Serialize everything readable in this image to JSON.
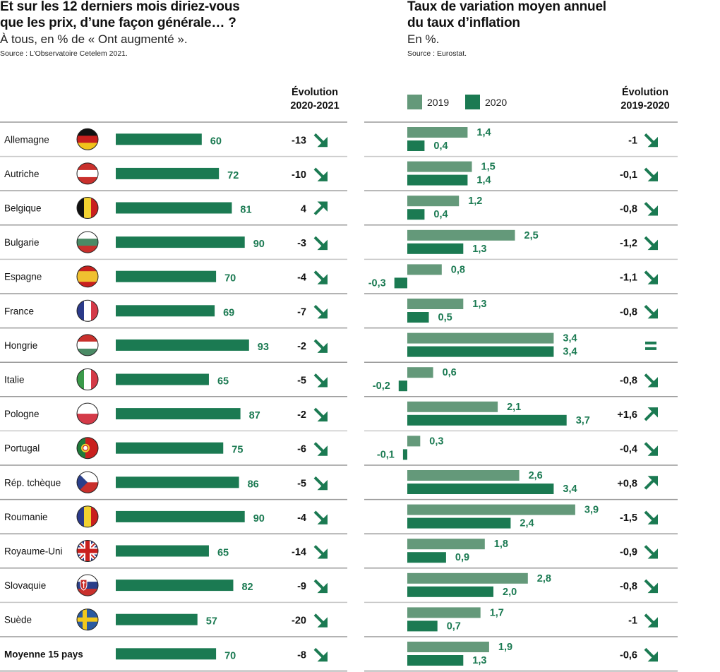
{
  "left_panel": {
    "title_line1": "Et sur les 12 derniers mois diriez-vous",
    "title_line2": "que les prix, d’une façon générale… ?",
    "subtitle": "À tous, en % de « Ont augmenté ».",
    "source": "Source : L’Observatoire Cetelem 2021.",
    "evolution_header_line1": "Évolution",
    "evolution_header_line2": "2020-2021"
  },
  "right_panel": {
    "title_line1": "Taux de variation moyen annuel",
    "title_line2": "du taux d’inflation",
    "subtitle": "En %.",
    "source": "Source : Eurostat.",
    "legend": [
      {
        "label": "2019",
        "color": "#64997a"
      },
      {
        "label": "2020",
        "color": "#1b7a52"
      }
    ],
    "evolution_header_line1": "Évolution",
    "evolution_header_line2": "2019-2020"
  },
  "colors": {
    "bar_main": "#1b7a52",
    "bar_2019": "#64997a",
    "bar_2020": "#1b7a52",
    "label_green": "#1b7a52",
    "arrow_green": "#1b7a52",
    "divider": "#9a9a9a",
    "divider_light": "#c8c8c8"
  },
  "chart_data": [
    {
      "type": "bar",
      "orientation": "horizontal",
      "title": "Et sur les 12 derniers mois diriez-vous que les prix, d’une façon générale… ?",
      "subtitle": "À tous, en % de « Ont augmenté ».",
      "categories": [
        "Allemagne",
        "Autriche",
        "Belgique",
        "Bulgarie",
        "Espagne",
        "France",
        "Hongrie",
        "Italie",
        "Pologne",
        "Portugal",
        "Rép. tchèque",
        "Roumanie",
        "Royaume-Uni",
        "Slovaquie",
        "Suède",
        "Moyenne 15 pays"
      ],
      "flags": [
        "de",
        "at",
        "be",
        "bg",
        "es",
        "fr",
        "hu",
        "it",
        "pl",
        "pt",
        "cz",
        "ro",
        "gb",
        "sk",
        "se",
        ""
      ],
      "values": [
        60,
        72,
        81,
        90,
        70,
        69,
        93,
        65,
        87,
        75,
        86,
        90,
        65,
        82,
        57,
        70
      ],
      "value_labels": [
        "60",
        "72",
        "81",
        "90",
        "70",
        "69",
        "93",
        "65",
        "87",
        "75",
        "86",
        "90",
        "65",
        "82",
        "57",
        "70"
      ],
      "evolution_header": "Évolution 2020-2021",
      "evolution": [
        "-13",
        "-10",
        "4",
        "-3",
        "-4",
        "-7",
        "-2",
        "-5",
        "-2",
        "-6",
        "-5",
        "-4",
        "-14",
        "-9",
        "-20",
        "-8"
      ],
      "evolution_direction": [
        "down",
        "down",
        "up",
        "down",
        "down",
        "down",
        "down",
        "down",
        "down",
        "down",
        "down",
        "down",
        "down",
        "down",
        "down",
        "down"
      ],
      "xlim": [
        0,
        100
      ],
      "grid": false,
      "unit": "%"
    },
    {
      "type": "bar",
      "orientation": "horizontal",
      "title": "Taux de variation moyen annuel du taux d’inflation",
      "subtitle": "En %.",
      "categories": [
        "Allemagne",
        "Autriche",
        "Belgique",
        "Bulgarie",
        "Espagne",
        "France",
        "Hongrie",
        "Italie",
        "Pologne",
        "Portugal",
        "Rép. tchèque",
        "Roumanie",
        "Royaume-Uni",
        "Slovaquie",
        "Suède",
        "Moyenne 15 pays"
      ],
      "series": [
        {
          "name": "2019",
          "values": [
            1.4,
            1.5,
            1.2,
            2.5,
            0.8,
            1.3,
            3.4,
            0.6,
            2.1,
            0.3,
            2.6,
            3.9,
            1.8,
            2.8,
            1.7,
            1.9
          ],
          "labels": [
            "1,4",
            "1,5",
            "1,2",
            "2,5",
            "0,8",
            "1,3",
            "3,4",
            "0,6",
            "2,1",
            "0,3",
            "2,6",
            "3,9",
            "1,8",
            "2,8",
            "1,7",
            "1,9"
          ]
        },
        {
          "name": "2020",
          "values": [
            0.4,
            1.4,
            0.4,
            1.3,
            -0.3,
            0.5,
            3.4,
            -0.2,
            3.7,
            -0.1,
            3.4,
            2.4,
            0.9,
            2.0,
            0.7,
            1.3
          ],
          "labels": [
            "0,4",
            "1,4",
            "0,4",
            "1,3",
            "-0,3",
            "0,5",
            "3,4",
            "-0,2",
            "3,7",
            "-0,1",
            "3,4",
            "2,4",
            "0,9",
            "2,0",
            "0,7",
            "1,3"
          ]
        }
      ],
      "evolution_header": "Évolution 2019-2020",
      "evolution": [
        "-1",
        "-0,1",
        "-0,8",
        "-1,2",
        "-1,1",
        "-0,8",
        "",
        "-0,8",
        "+1,6",
        "-0,4",
        "+0,8",
        "-1,5",
        "-0,9",
        "-0,8",
        "-1",
        "-0,6"
      ],
      "evolution_direction": [
        "down",
        "down",
        "down",
        "down",
        "down",
        "down",
        "equal",
        "down",
        "up",
        "down",
        "up",
        "down",
        "down",
        "down",
        "down",
        "down"
      ],
      "legend_position": "top-left",
      "grid": false,
      "unit": "%"
    }
  ]
}
